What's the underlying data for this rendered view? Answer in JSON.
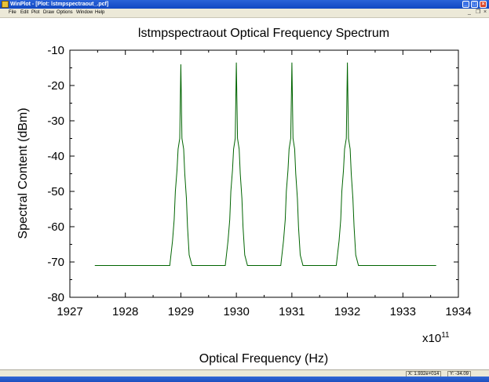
{
  "window": {
    "title": "WinPlot - [Plot: lstmpspectraout_.pcf]",
    "buttons": {
      "minimize": "_",
      "maximize": "□",
      "close": "×"
    }
  },
  "menu": {
    "items": [
      "File",
      "Edit",
      "Plot",
      "Draw",
      "Options",
      "Window",
      "Help"
    ],
    "mdi_controls": [
      "_",
      "❐",
      "×"
    ]
  },
  "status": {
    "x_readout": "X: 1.932e+014",
    "y_readout": "Y: -34.09"
  },
  "colors": {
    "series": "#006400",
    "titlebar": "#1148c2",
    "chrome": "#ece9d8"
  },
  "chart_data": {
    "type": "line",
    "title": "lstmpspectraout  Optical Frequency Spectrum",
    "xlabel": "Optical Frequency (Hz)",
    "ylabel": "Spectral Content (dBm)",
    "x_multiplier": "x10",
    "x_multiplier_exp": "11",
    "xlim": [
      1927,
      1934
    ],
    "ylim": [
      -80,
      -10
    ],
    "x_ticks": [
      1927,
      1928,
      1929,
      1930,
      1931,
      1932,
      1933,
      1934
    ],
    "y_ticks": [
      -10,
      -20,
      -30,
      -40,
      -50,
      -60,
      -70,
      -80
    ],
    "grid": false,
    "series": [
      {
        "x": [
          1927.45,
          1928.8,
          1928.85,
          1928.88,
          1928.9,
          1928.93,
          1928.95,
          1928.98,
          1929.0,
          1929.02,
          1929.05,
          1929.07,
          1929.1,
          1929.12,
          1929.15,
          1929.2,
          1929.8,
          1929.85,
          1929.88,
          1929.9,
          1929.93,
          1929.95,
          1929.98,
          1930.0,
          1930.02,
          1930.05,
          1930.07,
          1930.1,
          1930.12,
          1930.15,
          1930.2,
          1930.8,
          1930.85,
          1930.88,
          1930.9,
          1930.93,
          1930.95,
          1930.98,
          1931.0,
          1931.02,
          1931.05,
          1931.07,
          1931.1,
          1931.12,
          1931.15,
          1931.2,
          1931.8,
          1931.85,
          1931.88,
          1931.9,
          1931.93,
          1931.95,
          1931.98,
          1932.0,
          1932.02,
          1932.05,
          1932.07,
          1932.1,
          1932.12,
          1932.15,
          1932.2,
          1933.6
        ],
        "y": [
          -71,
          -71,
          -64,
          -58,
          -50,
          -44,
          -38,
          -35,
          -14,
          -35,
          -38,
          -45,
          -52,
          -60,
          -68,
          -71,
          -71,
          -64,
          -58,
          -50,
          -44,
          -38,
          -35,
          -13.5,
          -35,
          -38,
          -45,
          -52,
          -60,
          -68,
          -71,
          -71,
          -64,
          -58,
          -50,
          -44,
          -38,
          -35,
          -13.5,
          -35,
          -38,
          -45,
          -52,
          -60,
          -68,
          -71,
          -71,
          -64,
          -58,
          -50,
          -44,
          -38,
          -35,
          -13.5,
          -35,
          -38,
          -45,
          -52,
          -60,
          -68,
          -71,
          -71
        ]
      }
    ]
  }
}
